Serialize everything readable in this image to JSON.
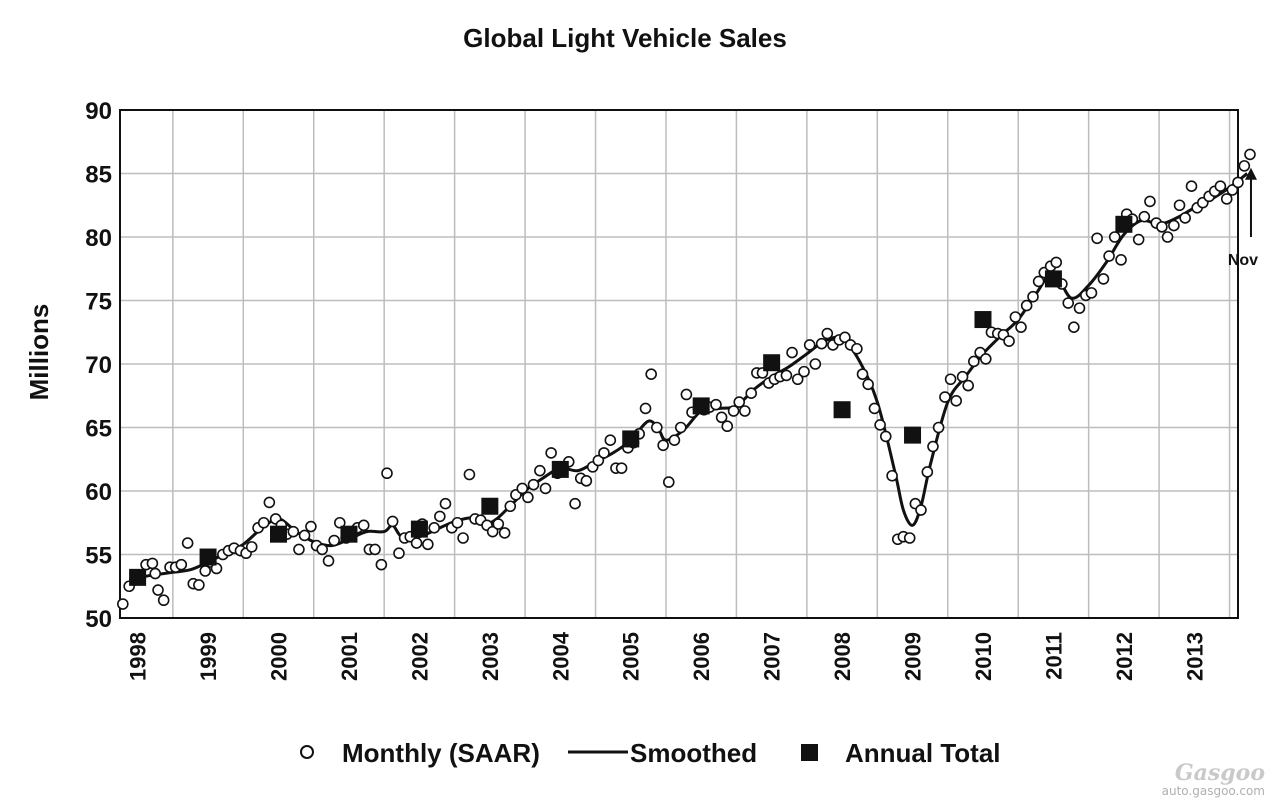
{
  "chart_data": {
    "type": "line",
    "title": "Global Light Vehicle Sales",
    "ylabel": "Millions",
    "xlabel": "",
    "ylim": [
      50,
      90
    ],
    "yticks": [
      50,
      55,
      60,
      65,
      70,
      75,
      80,
      85,
      90
    ],
    "xlim": [
      1997.75,
      2013.62
    ],
    "year_labels": [
      "1998",
      "1999",
      "2000",
      "2001",
      "2002",
      "2003",
      "2004",
      "2005",
      "2006",
      "2007",
      "2008",
      "2009",
      "2010",
      "2011",
      "2012",
      "2013"
    ],
    "grid": true,
    "legend_position": "bottom",
    "legend": [
      {
        "key": "monthly",
        "label": "Monthly (SAAR)",
        "marker": "open-circle"
      },
      {
        "key": "smoothed",
        "label": "Smoothed",
        "marker": "line"
      },
      {
        "key": "annual",
        "label": "Annual Total",
        "marker": "filled-square"
      }
    ],
    "series": [
      {
        "name": "Monthly (SAAR)",
        "points": [
          [
            1997.79,
            51.1
          ],
          [
            1997.88,
            52.5
          ],
          [
            1997.96,
            53.0
          ],
          [
            1998.04,
            53.2
          ],
          [
            1998.12,
            54.2
          ],
          [
            1998.21,
            54.3
          ],
          [
            1998.25,
            53.5
          ],
          [
            1998.29,
            52.2
          ],
          [
            1998.37,
            51.4
          ],
          [
            1998.46,
            54.0
          ],
          [
            1998.54,
            54.0
          ],
          [
            1998.62,
            54.2
          ],
          [
            1998.71,
            55.9
          ],
          [
            1998.79,
            52.7
          ],
          [
            1998.87,
            52.6
          ],
          [
            1998.96,
            53.7
          ],
          [
            1999.04,
            54.4
          ],
          [
            1999.12,
            53.9
          ],
          [
            1999.21,
            55.0
          ],
          [
            1999.29,
            55.3
          ],
          [
            1999.37,
            55.5
          ],
          [
            1999.46,
            55.3
          ],
          [
            1999.54,
            55.1
          ],
          [
            1999.62,
            55.6
          ],
          [
            1999.71,
            57.1
          ],
          [
            1999.79,
            57.5
          ],
          [
            1999.87,
            59.1
          ],
          [
            1999.96,
            57.8
          ],
          [
            2000.04,
            57.3
          ],
          [
            2000.12,
            56.6
          ],
          [
            2000.21,
            56.8
          ],
          [
            2000.29,
            55.4
          ],
          [
            2000.37,
            56.5
          ],
          [
            2000.46,
            57.2
          ],
          [
            2000.54,
            55.7
          ],
          [
            2000.62,
            55.4
          ],
          [
            2000.71,
            54.5
          ],
          [
            2000.79,
            56.1
          ],
          [
            2000.87,
            57.5
          ],
          [
            2000.96,
            56.3
          ],
          [
            2001.04,
            56.6
          ],
          [
            2001.12,
            57.1
          ],
          [
            2001.21,
            57.3
          ],
          [
            2001.29,
            55.4
          ],
          [
            2001.37,
            55.4
          ],
          [
            2001.46,
            54.2
          ],
          [
            2001.54,
            61.4
          ],
          [
            2001.62,
            57.6
          ],
          [
            2001.71,
            55.1
          ],
          [
            2001.79,
            56.3
          ],
          [
            2001.87,
            56.4
          ],
          [
            2001.96,
            55.9
          ],
          [
            2002.04,
            57.4
          ],
          [
            2002.12,
            55.8
          ],
          [
            2002.21,
            57.1
          ],
          [
            2002.29,
            58.0
          ],
          [
            2002.37,
            59.0
          ],
          [
            2002.46,
            57.1
          ],
          [
            2002.54,
            57.5
          ],
          [
            2002.62,
            56.3
          ],
          [
            2002.71,
            61.3
          ],
          [
            2002.79,
            57.8
          ],
          [
            2002.87,
            57.7
          ],
          [
            2002.96,
            57.3
          ],
          [
            2003.04,
            56.8
          ],
          [
            2003.12,
            57.4
          ],
          [
            2003.21,
            56.7
          ],
          [
            2003.29,
            58.8
          ],
          [
            2003.37,
            59.7
          ],
          [
            2003.46,
            60.2
          ],
          [
            2003.54,
            59.5
          ],
          [
            2003.62,
            60.5
          ],
          [
            2003.71,
            61.6
          ],
          [
            2003.79,
            60.2
          ],
          [
            2003.87,
            63.0
          ],
          [
            2003.96,
            61.4
          ],
          [
            2004.04,
            61.8
          ],
          [
            2004.12,
            62.3
          ],
          [
            2004.21,
            59.0
          ],
          [
            2004.29,
            61.0
          ],
          [
            2004.37,
            60.8
          ],
          [
            2004.46,
            61.9
          ],
          [
            2004.54,
            62.4
          ],
          [
            2004.62,
            63.0
          ],
          [
            2004.71,
            64.0
          ],
          [
            2004.79,
            61.8
          ],
          [
            2004.87,
            61.8
          ],
          [
            2004.96,
            63.4
          ],
          [
            2005.04,
            63.8
          ],
          [
            2005.12,
            64.5
          ],
          [
            2005.21,
            66.5
          ],
          [
            2005.29,
            69.2
          ],
          [
            2005.37,
            65.0
          ],
          [
            2005.46,
            63.6
          ],
          [
            2005.54,
            60.7
          ],
          [
            2005.62,
            64.0
          ],
          [
            2005.71,
            65.0
          ],
          [
            2005.79,
            67.6
          ],
          [
            2005.87,
            66.2
          ],
          [
            2005.96,
            66.5
          ],
          [
            2006.04,
            66.4
          ],
          [
            2006.12,
            66.6
          ],
          [
            2006.21,
            66.8
          ],
          [
            2006.29,
            65.8
          ],
          [
            2006.37,
            65.1
          ],
          [
            2006.46,
            66.3
          ],
          [
            2006.54,
            67.0
          ],
          [
            2006.62,
            66.3
          ],
          [
            2006.71,
            67.7
          ],
          [
            2006.79,
            69.3
          ],
          [
            2006.87,
            69.3
          ],
          [
            2006.96,
            68.5
          ],
          [
            2007.04,
            68.8
          ],
          [
            2007.12,
            69.0
          ],
          [
            2007.21,
            69.1
          ],
          [
            2007.29,
            70.9
          ],
          [
            2007.37,
            68.8
          ],
          [
            2007.46,
            69.4
          ],
          [
            2007.54,
            71.5
          ],
          [
            2007.62,
            70.0
          ],
          [
            2007.71,
            71.6
          ],
          [
            2007.79,
            72.4
          ],
          [
            2007.87,
            71.5
          ],
          [
            2007.96,
            71.9
          ],
          [
            2008.04,
            72.1
          ],
          [
            2008.12,
            71.5
          ],
          [
            2008.21,
            71.2
          ],
          [
            2008.29,
            69.2
          ],
          [
            2008.37,
            68.4
          ],
          [
            2008.46,
            66.5
          ],
          [
            2008.54,
            65.2
          ],
          [
            2008.62,
            64.3
          ],
          [
            2008.71,
            61.2
          ],
          [
            2008.79,
            56.2
          ],
          [
            2008.87,
            56.4
          ],
          [
            2008.96,
            56.3
          ],
          [
            2009.04,
            59.0
          ],
          [
            2009.12,
            58.5
          ],
          [
            2009.21,
            61.5
          ],
          [
            2009.29,
            63.5
          ],
          [
            2009.37,
            65.0
          ],
          [
            2009.46,
            67.4
          ],
          [
            2009.54,
            68.8
          ],
          [
            2009.62,
            67.1
          ],
          [
            2009.71,
            69.0
          ],
          [
            2009.79,
            68.3
          ],
          [
            2009.87,
            70.2
          ],
          [
            2009.96,
            70.9
          ],
          [
            2010.04,
            70.4
          ],
          [
            2010.12,
            72.5
          ],
          [
            2010.21,
            72.4
          ],
          [
            2010.29,
            72.3
          ],
          [
            2010.37,
            71.8
          ],
          [
            2010.46,
            73.7
          ],
          [
            2010.54,
            72.9
          ],
          [
            2010.62,
            74.6
          ],
          [
            2010.71,
            75.3
          ],
          [
            2010.79,
            76.5
          ],
          [
            2010.87,
            77.2
          ],
          [
            2010.96,
            77.7
          ],
          [
            2011.04,
            78.0
          ],
          [
            2011.12,
            76.3
          ],
          [
            2011.21,
            74.8
          ],
          [
            2011.29,
            72.9
          ],
          [
            2011.37,
            74.4
          ],
          [
            2011.46,
            75.4
          ],
          [
            2011.54,
            75.6
          ],
          [
            2011.62,
            79.9
          ],
          [
            2011.71,
            76.7
          ],
          [
            2011.79,
            78.5
          ],
          [
            2011.87,
            80.0
          ],
          [
            2011.96,
            78.2
          ],
          [
            2012.04,
            81.8
          ],
          [
            2012.12,
            81.4
          ],
          [
            2012.21,
            79.8
          ],
          [
            2012.29,
            81.6
          ],
          [
            2012.37,
            82.8
          ],
          [
            2012.46,
            81.1
          ],
          [
            2012.54,
            80.8
          ],
          [
            2012.62,
            80.0
          ],
          [
            2012.71,
            80.9
          ],
          [
            2012.79,
            82.5
          ],
          [
            2012.87,
            81.5
          ],
          [
            2012.96,
            84.0
          ],
          [
            2013.04,
            82.3
          ],
          [
            2013.12,
            82.7
          ],
          [
            2013.21,
            83.2
          ],
          [
            2013.29,
            83.6
          ],
          [
            2013.37,
            84.0
          ],
          [
            2013.46,
            83.0
          ],
          [
            2013.54,
            83.7
          ],
          [
            2013.62,
            84.3
          ],
          [
            2013.71,
            85.6
          ],
          [
            2013.79,
            86.5
          ]
        ]
      },
      {
        "name": "Smoothed",
        "points": [
          [
            1998.0,
            53.2
          ],
          [
            1998.25,
            53.4
          ],
          [
            1998.5,
            53.6
          ],
          [
            1998.75,
            53.8
          ],
          [
            1999.0,
            54.4
          ],
          [
            1999.25,
            55.1
          ],
          [
            1999.5,
            55.8
          ],
          [
            1999.75,
            57.0
          ],
          [
            2000.0,
            57.8
          ],
          [
            2000.25,
            56.8
          ],
          [
            2000.5,
            56.0
          ],
          [
            2000.75,
            55.7
          ],
          [
            2001.0,
            56.2
          ],
          [
            2001.25,
            56.8
          ],
          [
            2001.5,
            56.8
          ],
          [
            2001.62,
            57.3
          ],
          [
            2001.75,
            56.4
          ],
          [
            2002.0,
            56.4
          ],
          [
            2002.25,
            57.0
          ],
          [
            2002.5,
            57.6
          ],
          [
            2002.75,
            57.9
          ],
          [
            2003.0,
            57.5
          ],
          [
            2003.25,
            58.6
          ],
          [
            2003.5,
            60.0
          ],
          [
            2003.75,
            61.0
          ],
          [
            2004.0,
            61.8
          ],
          [
            2004.25,
            61.6
          ],
          [
            2004.5,
            62.3
          ],
          [
            2004.75,
            63.0
          ],
          [
            2005.0,
            64.0
          ],
          [
            2005.25,
            65.5
          ],
          [
            2005.4,
            64.8
          ],
          [
            2005.5,
            64.0
          ],
          [
            2005.75,
            64.8
          ],
          [
            2006.0,
            66.3
          ],
          [
            2006.25,
            66.5
          ],
          [
            2006.5,
            66.7
          ],
          [
            2006.75,
            68.0
          ],
          [
            2007.0,
            69.0
          ],
          [
            2007.25,
            69.8
          ],
          [
            2007.5,
            70.8
          ],
          [
            2007.75,
            71.8
          ],
          [
            2008.0,
            72.0
          ],
          [
            2008.25,
            70.2
          ],
          [
            2008.5,
            67.0
          ],
          [
            2008.75,
            61.5
          ],
          [
            2008.87,
            58.5
          ],
          [
            2009.0,
            57.3
          ],
          [
            2009.12,
            58.8
          ],
          [
            2009.25,
            62.0
          ],
          [
            2009.5,
            67.0
          ],
          [
            2009.75,
            69.0
          ],
          [
            2010.0,
            70.8
          ],
          [
            2010.25,
            72.2
          ],
          [
            2010.5,
            73.5
          ],
          [
            2010.75,
            75.5
          ],
          [
            2011.0,
            77.2
          ],
          [
            2011.25,
            75.2
          ],
          [
            2011.5,
            76.2
          ],
          [
            2011.75,
            78.0
          ],
          [
            2012.0,
            80.2
          ],
          [
            2012.25,
            81.3
          ],
          [
            2012.5,
            81.0
          ],
          [
            2012.75,
            81.5
          ],
          [
            2013.0,
            82.3
          ],
          [
            2013.25,
            83.0
          ],
          [
            2013.5,
            83.9
          ],
          [
            2013.75,
            85.0
          ]
        ]
      },
      {
        "name": "Annual Total",
        "points": [
          [
            1998,
            53.2
          ],
          [
            1999,
            54.8
          ],
          [
            2000,
            56.6
          ],
          [
            2001,
            56.6
          ],
          [
            2002,
            57.0
          ],
          [
            2003,
            58.8
          ],
          [
            2004,
            61.7
          ],
          [
            2005,
            64.1
          ],
          [
            2006,
            66.7
          ],
          [
            2007,
            70.1
          ],
          [
            2008,
            66.4
          ],
          [
            2009,
            64.4
          ],
          [
            2010,
            73.5
          ],
          [
            2011,
            76.7
          ],
          [
            2012,
            81.0
          ]
        ]
      }
    ],
    "annotation": {
      "label": "Nov",
      "x": 2013.79,
      "y_from": 80.0,
      "y_to": 85.3
    }
  },
  "watermark": {
    "logo": "Gasgoo",
    "url": "auto.gasgoo.com"
  }
}
